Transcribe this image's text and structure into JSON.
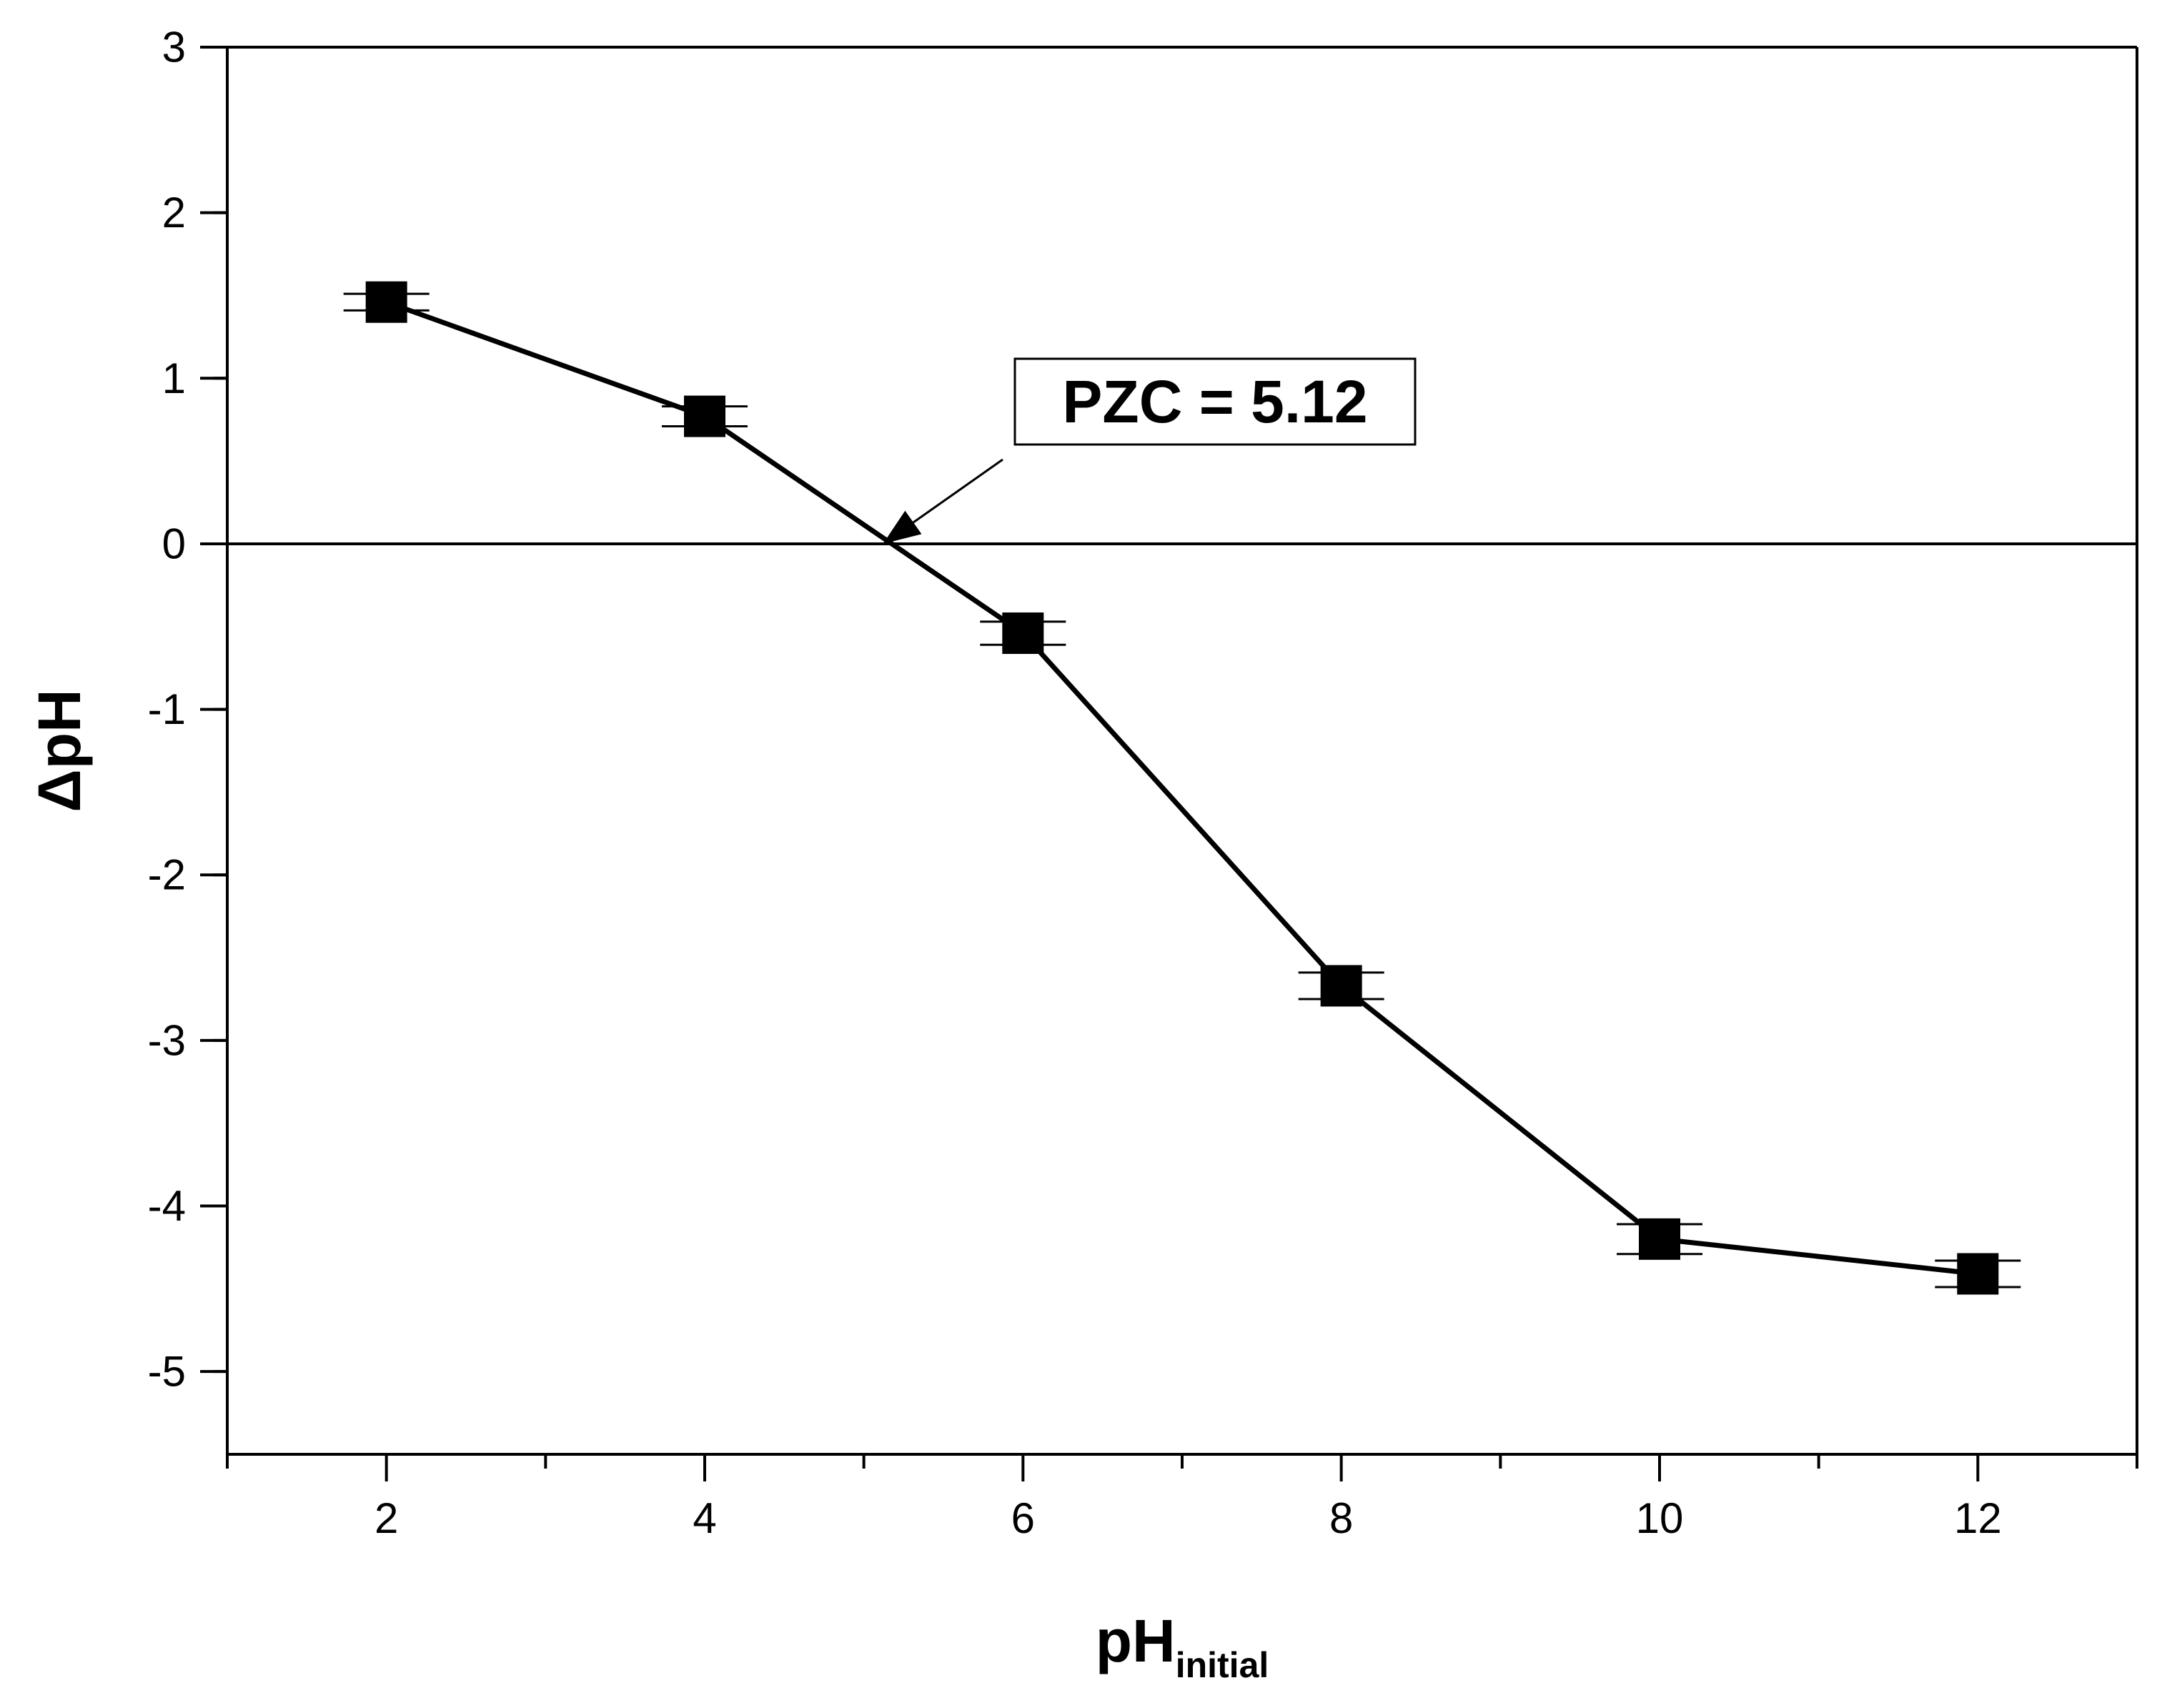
{
  "chart_data": {
    "type": "line",
    "title": "",
    "xlabel": {
      "main": "pH",
      "subscript": "initial"
    },
    "ylabel": "ΔpH",
    "xlim": [
      1,
      13
    ],
    "ylim": [
      -5.5,
      3
    ],
    "x_ticks": [
      2,
      4,
      6,
      8,
      10,
      12
    ],
    "y_ticks": [
      3,
      2,
      1,
      0,
      -1,
      -2,
      -3,
      -4,
      -5
    ],
    "x_tick_labels": [
      "2",
      "4",
      "6",
      "8",
      "10",
      "12"
    ],
    "y_tick_labels": [
      "3",
      "2",
      "1",
      "0",
      "-1",
      "-2",
      "-3",
      "-4",
      "-5"
    ],
    "zero_line": 0,
    "series": [
      {
        "name": "ΔpH",
        "color": "#000000",
        "marker": "square",
        "x": [
          2,
          4,
          6,
          8,
          10,
          12
        ],
        "values": [
          1.46,
          0.77,
          -0.54,
          -2.67,
          -4.2,
          -4.41
        ],
        "error": [
          0.05,
          0.06,
          0.07,
          0.08,
          0.09,
          0.08
        ]
      }
    ],
    "annotation": {
      "text": "PZC = 5.12",
      "point_x": 5.12,
      "point_y": 0
    },
    "grid": false,
    "legend": "none"
  }
}
